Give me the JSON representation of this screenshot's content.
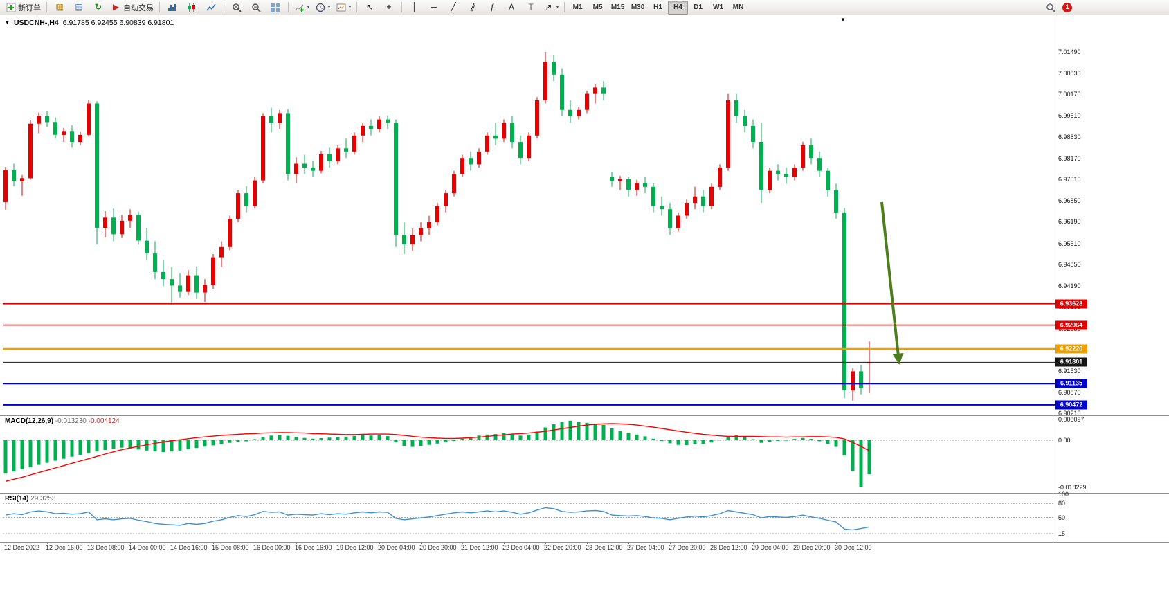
{
  "toolbar": {
    "new_order_label": "新订单",
    "auto_trading_label": "自动交易",
    "timeframes": [
      "M1",
      "M5",
      "M15",
      "M30",
      "H1",
      "H4",
      "D1",
      "W1",
      "MN"
    ],
    "active_timeframe": "H4",
    "notification_count": "1",
    "icons": {
      "collapse": "▼",
      "shift_marker": "▼",
      "caret": "▾",
      "chart_profile": "▦",
      "print": "▤",
      "refresh": "↻",
      "auto_play": "▶",
      "indicators_plus": "+",
      "cursor": "↖",
      "crosshair": "+",
      "vline": "│",
      "hline": "─",
      "trendline": "╱",
      "channel": "∥",
      "fibonacci": "ƒ",
      "text": "A",
      "label": "T",
      "arrows": "↗"
    }
  },
  "chart": {
    "symbol_label": "USDCNH-,H4",
    "ohlc": "6.91785 6.92455 6.90839 6.91801",
    "up_color": "#e60000",
    "down_color": "#00b050",
    "price_axis_labels": [
      "7.01490",
      "7.00830",
      "7.00170",
      "6.99510",
      "6.98830",
      "6.98170",
      "6.97510",
      "6.96850",
      "6.96190",
      "6.95510",
      "6.94850",
      "6.94190",
      "6.93530",
      "6.92850",
      "6.92190",
      "6.91530",
      "6.90870",
      "6.90210"
    ],
    "level_lines": [
      {
        "label": "6.93628",
        "value": 6.93628,
        "color": "#e00000",
        "width": 1.6,
        "dash": ""
      },
      {
        "label": "6.92964",
        "value": 6.92964,
        "color": "#e00000",
        "width": 1.6,
        "dash": ""
      },
      {
        "label": "6.92220",
        "value": 6.9222,
        "color": "#efa000",
        "width": 2.4,
        "dash": ""
      },
      {
        "label": "6.91801",
        "value": 6.91801,
        "color": "#161616",
        "width": 1,
        "dash": ""
      },
      {
        "label": "6.91135",
        "value": 6.91135,
        "color": "#0000cc",
        "width": 2,
        "dash": ""
      },
      {
        "label": "6.90472",
        "value": 6.90472,
        "color": "#0000cc",
        "width": 2,
        "dash": ""
      }
    ],
    "arrow": {
      "color": "#4e7d1e",
      "from_bar": 105.5,
      "from_price": 6.968,
      "to_bar": 107.6,
      "to_price": 6.9175
    }
  },
  "macd": {
    "name": "MACD(12,26,9)",
    "value_main": "-0.013230",
    "value_signal": "-0.004124",
    "hist_color": "#00b050",
    "signal_color": "#ff0000",
    "axis": [
      {
        "label": "0.008097",
        "v": 8.097
      },
      {
        "label": "0.00",
        "v": 0
      },
      {
        "label": "-0.018229",
        "v": -18.229
      }
    ],
    "hist_x1000": [
      -13,
      -12.2,
      -11.4,
      -10.5,
      -9.6,
      -8.8,
      -8,
      -7.2,
      -6.4,
      -5.7,
      -5,
      -4.4,
      -3.8,
      -3.3,
      -2.9,
      -3.2,
      -3.6,
      -4,
      -4.4,
      -4.6,
      -4.4,
      -4,
      -3.5,
      -3,
      -2.5,
      -2,
      -1.5,
      -1,
      -0.6,
      -0.4,
      0.4,
      1.2,
      1.8,
      2,
      1.7,
      1.3,
      0.9,
      0.6,
      0.8,
      1,
      1.2,
      1.4,
      1.7,
      2,
      1.8,
      1.9,
      1.6,
      -0.8,
      -2.2,
      -2.6,
      -2.2,
      -1.8,
      -1.3,
      -0.8,
      -0.2,
      0.6,
      1.2,
      1.8,
      2.2,
      2.4,
      2.8,
      2.4,
      1.8,
      2.2,
      3.4,
      5,
      6.2,
      7,
      7.6,
      7.2,
      6.8,
      6.4,
      6,
      4.6,
      3.6,
      2.8,
      2.2,
      1.5,
      0.6,
      -0.2,
      -1.2,
      -1.8,
      -1.9,
      -1.6,
      -1.4,
      -0.9,
      0.2,
      1.4,
      1.9,
      1.4,
      0.4,
      -1,
      -0.6,
      -0.1,
      0.1,
      0.5,
      0.9,
      0.5,
      -0.4,
      -1.4,
      -2.6,
      -6,
      -12,
      -18.229,
      -13.23
    ],
    "signal_x1000": [
      -16,
      -15.2,
      -14.4,
      -13.5,
      -12.6,
      -11.7,
      -10.8,
      -9.9,
      -9,
      -8.1,
      -7.2,
      -6.3,
      -5.4,
      -4.5,
      -3.7,
      -3,
      -2.4,
      -1.8,
      -1.2,
      -0.7,
      -0.2,
      0.2,
      0.6,
      1,
      1.3,
      1.6,
      1.9,
      2.1,
      2.3,
      2.5,
      2.6,
      2.8,
      2.9,
      3,
      3,
      2.9,
      2.8,
      2.6,
      2.5,
      2.4,
      2.3,
      2.2,
      2.2,
      2.3,
      2.4,
      2.4,
      2.4,
      2.2,
      1.9,
      1.5,
      1.2,
      1,
      0.8,
      0.7,
      0.7,
      0.8,
      1,
      1.2,
      1.5,
      1.8,
      2.1,
      2.4,
      2.6,
      2.8,
      3.1,
      3.5,
      4,
      4.5,
      5,
      5.5,
      5.9,
      6.2,
      6.4,
      6.5,
      6.4,
      6.2,
      5.9,
      5.5,
      5.1,
      4.6,
      4.1,
      3.6,
      3.1,
      2.7,
      2.3,
      2,
      1.7,
      1.5,
      1.5,
      1.5,
      1.5,
      1.4,
      1.3,
      1.3,
      1.2,
      1.3,
      1.3,
      1.4,
      1.4,
      1.3,
      1.1,
      0.5,
      -0.8,
      -2.4,
      -4.124
    ]
  },
  "rsi": {
    "name": "RSI(14)",
    "value": "29.3253",
    "line_color": "#3f8fd2",
    "axis": [
      {
        "label": "100",
        "v": 100
      },
      {
        "label": "80",
        "v": 80
      },
      {
        "label": "50",
        "v": 50
      },
      {
        "label": "15",
        "v": 15
      }
    ],
    "levels": [
      80,
      50,
      15
    ],
    "values": [
      55,
      58,
      56,
      62,
      64,
      62,
      58,
      59,
      57,
      58,
      62,
      45,
      47,
      45,
      47,
      48,
      44,
      41,
      37,
      35,
      34,
      33,
      37,
      35,
      37,
      42,
      45,
      50,
      54,
      52,
      56,
      63,
      61,
      62,
      55,
      57,
      56,
      55,
      58,
      56,
      58,
      57,
      60,
      62,
      60,
      62,
      61,
      48,
      45,
      47,
      49,
      51,
      54,
      57,
      60,
      62,
      60,
      62,
      64,
      62,
      64,
      61,
      57,
      60,
      66,
      71,
      69,
      63,
      61,
      62,
      64,
      65,
      63,
      55,
      54,
      53,
      54,
      52,
      49,
      48,
      45,
      48,
      51,
      53,
      51,
      54,
      58,
      65,
      62,
      59,
      56,
      49,
      52,
      51,
      50,
      52,
      55,
      51,
      48,
      44,
      40,
      25,
      23,
      26,
      29.33
    ]
  },
  "time_axis": [
    "12 Dec 2022",
    "12 Dec 16:00",
    "13 Dec 08:00",
    "14 Dec 00:00",
    "14 Dec 16:00",
    "15 Dec 08:00",
    "16 Dec 00:00",
    "16 Dec 16:00",
    "19 Dec 12:00",
    "20 Dec 04:00",
    "20 Dec 20:00",
    "21 Dec 12:00",
    "22 Dec 04:00",
    "22 Dec 20:00",
    "23 Dec 12:00",
    "27 Dec 04:00",
    "27 Dec 20:00",
    "28 Dec 12:00",
    "29 Dec 04:00",
    "29 Dec 20:00",
    "30 Dec 12:00"
  ],
  "chart_data": {
    "type": "candlestick",
    "symbol": "USDCNH",
    "timeframe": "H4",
    "price_range": [
      6.9021,
      7.0149
    ],
    "candles": [
      [
        6.968,
        6.979,
        6.9655,
        6.978
      ],
      [
        6.978,
        6.98,
        6.973,
        6.9745
      ],
      [
        6.9745,
        6.9765,
        6.97,
        6.9755
      ],
      [
        6.9755,
        6.9935,
        6.975,
        6.9925
      ],
      [
        6.9925,
        6.996,
        6.9895,
        6.995
      ],
      [
        6.995,
        6.9965,
        6.9915,
        6.993
      ],
      [
        6.993,
        6.9945,
        6.9878,
        6.989
      ],
      [
        6.989,
        6.9912,
        6.9868,
        6.9902
      ],
      [
        6.9902,
        6.992,
        6.985,
        6.9868
      ],
      [
        6.9868,
        6.99,
        6.9858,
        6.989
      ],
      [
        6.989,
        7.0,
        6.9885,
        6.9988
      ],
      [
        6.9988,
        6.9995,
        6.9548,
        6.96
      ],
      [
        6.96,
        6.9652,
        6.957,
        6.9632
      ],
      [
        6.9632,
        6.966,
        6.9558,
        6.958
      ],
      [
        6.958,
        6.964,
        6.9568,
        6.9622
      ],
      [
        6.9622,
        6.9658,
        6.96,
        6.964
      ],
      [
        6.964,
        6.965,
        6.9548,
        6.956
      ],
      [
        6.956,
        6.96,
        6.9498,
        6.952
      ],
      [
        6.952,
        6.9558,
        6.944,
        6.9462
      ],
      [
        6.9462,
        6.95,
        6.9418,
        6.944
      ],
      [
        6.944,
        6.9478,
        6.936,
        6.942
      ],
      [
        6.942,
        6.9458,
        6.9382,
        6.94
      ],
      [
        6.94,
        6.9468,
        6.939,
        6.9452
      ],
      [
        6.9452,
        6.948,
        6.9378,
        6.9398
      ],
      [
        6.9398,
        6.944,
        6.9368,
        6.9422
      ],
      [
        6.9422,
        6.9518,
        6.941,
        6.9508
      ],
      [
        6.9508,
        6.9558,
        6.9478,
        6.954
      ],
      [
        6.954,
        6.9638,
        6.953,
        6.9628
      ],
      [
        6.9628,
        6.9718,
        6.9618,
        6.9708
      ],
      [
        6.9708,
        6.973,
        6.9648,
        6.9668
      ],
      [
        6.9668,
        6.9758,
        6.966,
        6.9748
      ],
      [
        6.9748,
        6.9958,
        6.974,
        6.9948
      ],
      [
        6.9948,
        6.9975,
        6.9898,
        6.9928
      ],
      [
        6.9928,
        6.9968,
        6.9908,
        6.9958
      ],
      [
        6.9958,
        6.997,
        6.9748,
        6.9768
      ],
      [
        6.9768,
        6.982,
        6.974,
        6.98
      ],
      [
        6.98,
        6.9828,
        6.9768,
        6.9788
      ],
      [
        6.9788,
        6.981,
        6.9758,
        6.9778
      ],
      [
        6.9778,
        6.984,
        6.977,
        6.983
      ],
      [
        6.983,
        6.985,
        6.9788,
        6.9808
      ],
      [
        6.9808,
        6.9858,
        6.9798,
        6.9848
      ],
      [
        6.9848,
        6.9878,
        6.9818,
        6.9838
      ],
      [
        6.9838,
        6.9898,
        6.9828,
        6.9888
      ],
      [
        6.9888,
        6.9928,
        6.9868,
        6.9918
      ],
      [
        6.9918,
        6.9938,
        6.9888,
        6.9908
      ],
      [
        6.9908,
        6.9948,
        6.9898,
        6.9938
      ],
      [
        6.9938,
        6.995,
        6.9908,
        6.9928
      ],
      [
        6.9928,
        6.9938,
        6.954,
        6.9578
      ],
      [
        6.9578,
        6.9618,
        6.9518,
        6.9548
      ],
      [
        6.9548,
        6.9598,
        6.9528,
        6.9578
      ],
      [
        6.9578,
        6.9618,
        6.9558,
        6.9598
      ],
      [
        6.9598,
        6.9638,
        6.9578,
        6.9618
      ],
      [
        6.9618,
        6.9678,
        6.9608,
        6.9668
      ],
      [
        6.9668,
        6.9718,
        6.9648,
        6.9708
      ],
      [
        6.9708,
        6.9778,
        6.9698,
        6.9768
      ],
      [
        6.9768,
        6.9828,
        6.9758,
        6.9818
      ],
      [
        6.9818,
        6.9838,
        6.9778,
        6.9798
      ],
      [
        6.9798,
        6.9848,
        6.9788,
        6.9838
      ],
      [
        6.9838,
        6.9898,
        6.9828,
        6.9888
      ],
      [
        6.9888,
        6.9928,
        6.9858,
        6.9878
      ],
      [
        6.9878,
        6.9938,
        6.9868,
        6.9928
      ],
      [
        6.9928,
        6.9948,
        6.9848,
        6.9868
      ],
      [
        6.9868,
        6.9888,
        6.9798,
        6.9818
      ],
      [
        6.9818,
        6.9898,
        6.9808,
        6.9888
      ],
      [
        6.9888,
        7.0008,
        6.9878,
        6.9998
      ],
      [
        6.9998,
        7.0149,
        6.9988,
        7.0118
      ],
      [
        7.0118,
        7.0138,
        7.0058,
        7.0078
      ],
      [
        7.0078,
        7.0098,
        6.9948,
        6.9968
      ],
      [
        6.9968,
        6.9998,
        6.9928,
        6.9948
      ],
      [
        6.9948,
        6.9978,
        6.9938,
        6.9968
      ],
      [
        6.9968,
        7.0028,
        6.9958,
        7.0018
      ],
      [
        7.0018,
        7.0048,
        6.9988,
        7.0038
      ],
      [
        7.0038,
        7.0058,
        6.9998,
        7.0018
      ],
      [
        6.9758,
        6.9775,
        6.9728,
        6.9745
      ],
      [
        6.9745,
        6.9762,
        6.9718,
        6.9752
      ],
      [
        6.9752,
        6.976,
        6.9698,
        6.9718
      ],
      [
        6.9718,
        6.975,
        6.97,
        6.974
      ],
      [
        6.974,
        6.9758,
        6.9708,
        6.9728
      ],
      [
        6.9728,
        6.974,
        6.9648,
        6.9668
      ],
      [
        6.9668,
        6.9698,
        6.9638,
        6.9658
      ],
      [
        6.9658,
        6.9678,
        6.9578,
        6.9598
      ],
      [
        6.9598,
        6.9648,
        6.9588,
        6.9638
      ],
      [
        6.9638,
        6.9688,
        6.9628,
        6.9678
      ],
      [
        6.9678,
        6.9728,
        6.9658,
        6.9698
      ],
      [
        6.9698,
        6.9718,
        6.9648,
        6.9668
      ],
      [
        6.9668,
        6.9738,
        6.9658,
        6.9728
      ],
      [
        6.9728,
        6.9798,
        6.9718,
        6.9788
      ],
      [
        6.9788,
        7.0018,
        6.9778,
        6.9998
      ],
      [
        6.9998,
        7.0018,
        6.9928,
        6.9948
      ],
      [
        6.9948,
        6.9968,
        6.9898,
        6.9918
      ],
      [
        6.9918,
        6.9938,
        6.9848,
        6.9868
      ],
      [
        6.9868,
        6.9928,
        6.9678,
        6.9718
      ],
      [
        6.9718,
        6.9788,
        6.9708,
        6.9778
      ],
      [
        6.9778,
        6.9798,
        6.9748,
        6.9768
      ],
      [
        6.9768,
        6.9788,
        6.9738,
        6.9758
      ],
      [
        6.9758,
        6.9798,
        6.9748,
        6.9788
      ],
      [
        6.9788,
        6.9868,
        6.9778,
        6.9858
      ],
      [
        6.9858,
        6.9878,
        6.9798,
        6.9818
      ],
      [
        6.9818,
        6.9838,
        6.9758,
        6.9778
      ],
      [
        6.9778,
        6.9788,
        6.9698,
        6.9718
      ],
      [
        6.9718,
        6.9738,
        6.9628,
        6.9648
      ],
      [
        6.9648,
        6.9662,
        6.9068,
        6.9092
      ],
      [
        6.9092,
        6.9162,
        6.906,
        6.9152
      ],
      [
        6.9152,
        6.9172,
        6.908,
        6.91
      ],
      [
        6.91785,
        6.92455,
        6.90839,
        6.91801
      ]
    ]
  }
}
